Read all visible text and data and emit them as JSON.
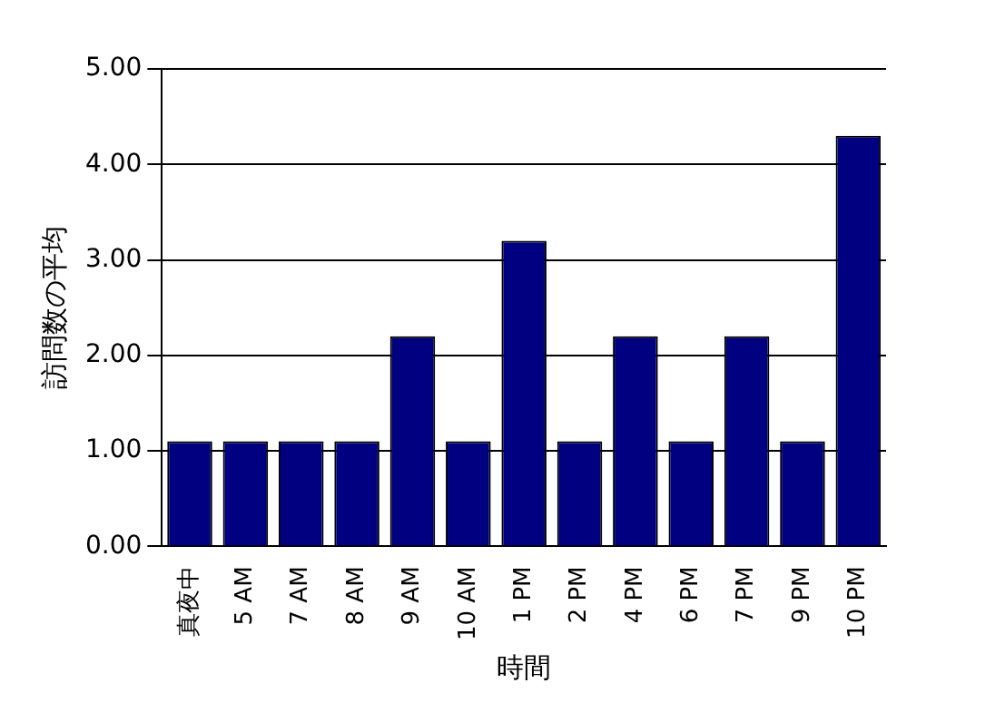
{
  "chart_data": {
    "type": "bar",
    "xlabel": "時間",
    "ylabel": "訪問数の平均",
    "categories": [
      "真夜中",
      "5 AM",
      "7 AM",
      "8 AM",
      "9 AM",
      "10 AM",
      "1 PM",
      "2 PM",
      "4 PM",
      "6 PM",
      "7 PM",
      "9 PM",
      "10 PM"
    ],
    "values": [
      1.1,
      1.1,
      1.1,
      1.1,
      2.2,
      1.1,
      3.2,
      1.1,
      2.2,
      1.1,
      2.2,
      1.1,
      4.3
    ],
    "color": "#000080",
    "ylim": [
      0,
      5
    ],
    "yticks": [
      {
        "value": 0,
        "label": "0.00"
      },
      {
        "value": 1,
        "label": "1.00"
      },
      {
        "value": 2,
        "label": "2.00"
      },
      {
        "value": 3,
        "label": "3.00"
      },
      {
        "value": 4,
        "label": "4.00"
      },
      {
        "value": 5,
        "label": "5.00"
      }
    ],
    "grid": "y",
    "legend": false
  }
}
